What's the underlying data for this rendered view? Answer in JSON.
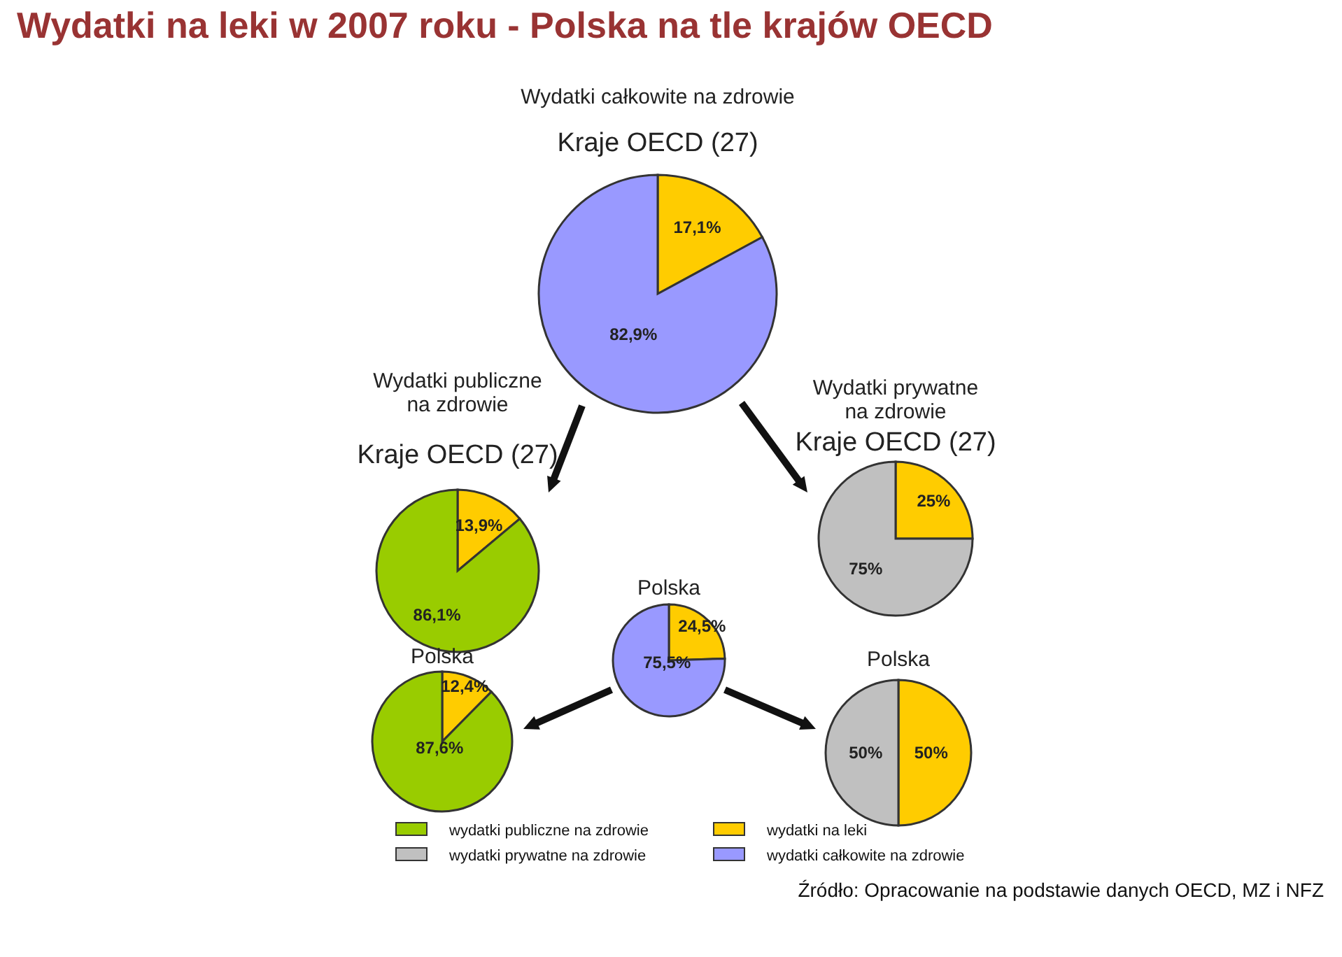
{
  "chart_data": [
    {
      "type": "pie",
      "title": "Wydatki całkowite na zdrowie",
      "subtitle": "Kraje OECD (27)",
      "categories": [
        "wydatki na leki",
        "wydatki całkowite na zdrowie"
      ],
      "values": [
        17.1,
        82.9
      ],
      "value_labels": [
        "17,1%",
        "82,9%"
      ],
      "colors": [
        "#ffcc00",
        "#9999ff"
      ],
      "legend": "bottom"
    },
    {
      "type": "pie",
      "title": "Wydatki publiczne na zdrowie",
      "subtitle": "Kraje OECD (27)",
      "categories": [
        null,
        "wydatki publiczne na zdrowie"
      ],
      "values": [
        13.9,
        86.1
      ],
      "value_labels": [
        "13,9%",
        "86,1%"
      ],
      "colors": [
        "#ffcc00",
        "#99cc00"
      ],
      "legend": "bottom"
    },
    {
      "type": "pie",
      "title": "Wydatki prywatne na zdrowie",
      "subtitle": "Kraje OECD (27)",
      "categories": [
        null,
        "wydatki prywatne na zdrowie"
      ],
      "values": [
        25,
        75
      ],
      "value_labels": [
        "25%",
        "75%"
      ],
      "colors": [
        "#ffcc00",
        "#c0c0c0"
      ],
      "legend": "bottom"
    },
    {
      "type": "pie",
      "title": "Polska",
      "categories": [
        null,
        null
      ],
      "values": [
        24.5,
        75.5
      ],
      "value_labels": [
        "24,5%",
        "75,5%"
      ],
      "colors": [
        "#ffcc00",
        "#9999ff"
      ]
    },
    {
      "type": "pie",
      "title": "Polska",
      "categories": [
        null,
        null
      ],
      "values": [
        12.4,
        87.6
      ],
      "value_labels": [
        "12,4%",
        "87,6%"
      ],
      "colors": [
        "#ffcc00",
        "#99cc00"
      ]
    },
    {
      "type": "pie",
      "title": "Polska",
      "categories": [
        null,
        null
      ],
      "values": [
        50,
        50
      ],
      "value_labels": [
        "50%",
        "50%"
      ],
      "colors": [
        "#ffcc00",
        "#c0c0c0"
      ]
    },
    {
      "type": "other",
      "title": "Wydatki na leki w 2007 roku - Polska na tle krajów OECD",
      "annotations": [
        "Źródło: Opracowanie na podstawie danych OECD, MZ i NFZ"
      ]
    }
  ]
}
